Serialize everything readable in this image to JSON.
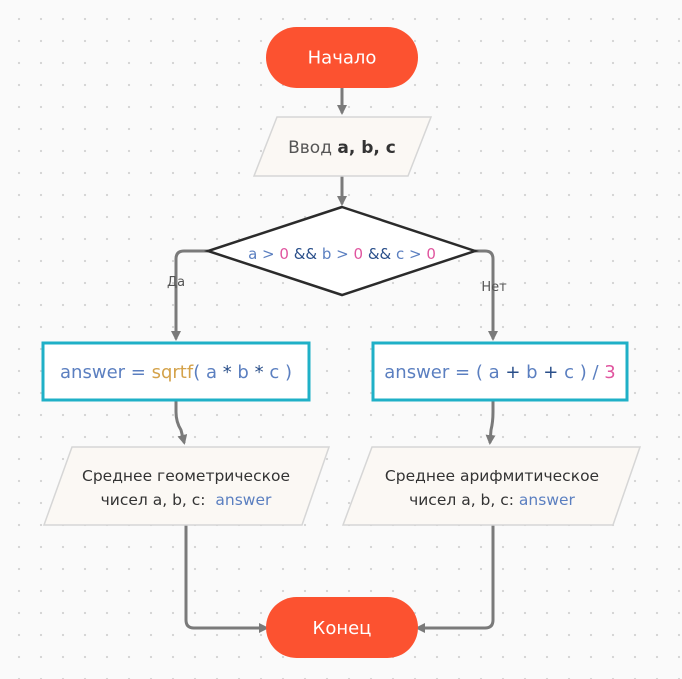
{
  "colors": {
    "terminal_fill": "#fc5230",
    "terminal_text": "#ffffff",
    "io_fill": "#fbf8f4",
    "io_stroke": "#d6d6d6",
    "process_stroke": "#1fb0c7",
    "decision_stroke": "#2b2b2b",
    "connector": "#7a7a7a",
    "text_dark": "#333333",
    "code_var": "#5b7fc0",
    "code_num": "#e0559f",
    "code_func": "#d4a24a",
    "code_op": "#2a4f8a"
  },
  "start": {
    "label": "Начало"
  },
  "input": {
    "prefix": "Ввод ",
    "vars": "a, b, c"
  },
  "decision": {
    "a": "a",
    "op1": " > ",
    "n1": "0",
    "and1": " && ",
    "b": "b",
    "op2": " > ",
    "n2": "0",
    "and2": " && ",
    "c": "c",
    "op3": " > ",
    "n3": "0"
  },
  "branch_yes": {
    "label": "Да"
  },
  "branch_no": {
    "label": "Нет"
  },
  "process_left": {
    "var": "answer",
    "eq": " = ",
    "func": "sqrtf",
    "lp": "( ",
    "a": "a",
    "m1": " * ",
    "b": "b",
    "m2": " * ",
    "c": "c",
    "rp": " )"
  },
  "process_right": {
    "var": "answer",
    "eq": " = ",
    "lp": "( ",
    "a": "a",
    "p1": " + ",
    "b": "b",
    "p2": " + ",
    "c": "c",
    "rp": " ) / ",
    "n": "3"
  },
  "output_left": {
    "line1": "Среднее геометрическое",
    "line2_prefix": "чисел a, b, c:  ",
    "var": "answer"
  },
  "output_right": {
    "line1": "Среднее арифмитическое",
    "line2_prefix": "чисел a, b, c: ",
    "var": "answer"
  },
  "end": {
    "label": "Конец"
  }
}
